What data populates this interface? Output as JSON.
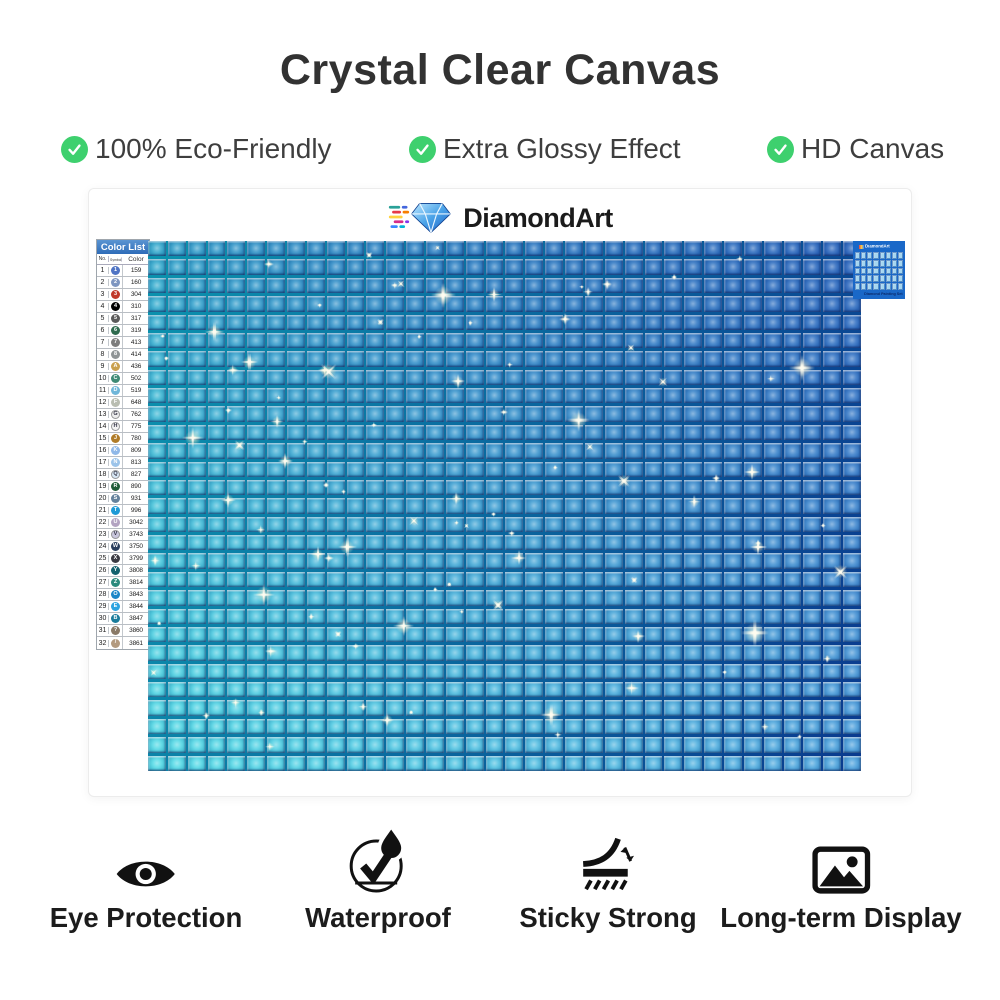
{
  "header": {
    "title": "Crystal Clear Canvas"
  },
  "features": [
    {
      "label": "100% Eco-Friendly"
    },
    {
      "label": "Extra Glossy Effect"
    },
    {
      "label": "HD Canvas"
    }
  ],
  "brand": {
    "name": "DiamondArt"
  },
  "colors": {
    "check_green": "#3ed06e",
    "title_text": "#323232",
    "color_list_header_blue": "#3a7cc0",
    "thumbnail_bg": "#1a68c8"
  },
  "color_list": {
    "title": "Color List",
    "columns": [
      "No.",
      "Symbol",
      "Color"
    ],
    "rows": [
      {
        "no": "1",
        "symbol": "1",
        "code": "159",
        "bg": "#4f74c4"
      },
      {
        "no": "2",
        "symbol": "2",
        "code": "160",
        "bg": "#7e96c0"
      },
      {
        "no": "3",
        "symbol": "3",
        "code": "304",
        "bg": "#c0392b"
      },
      {
        "no": "4",
        "symbol": "4",
        "code": "310",
        "bg": "#000000"
      },
      {
        "no": "5",
        "symbol": "5",
        "code": "317",
        "bg": "#5a5a5a"
      },
      {
        "no": "6",
        "symbol": "6",
        "code": "319",
        "bg": "#2f6b4f"
      },
      {
        "no": "7",
        "symbol": "7",
        "code": "413",
        "bg": "#7d7d7d"
      },
      {
        "no": "8",
        "symbol": "8",
        "code": "414",
        "bg": "#8f9496"
      },
      {
        "no": "9",
        "symbol": "A",
        "code": "436",
        "bg": "#c9a04e"
      },
      {
        "no": "10",
        "symbol": "C",
        "code": "502",
        "bg": "#3e8a74"
      },
      {
        "no": "11",
        "symbol": "D",
        "code": "519",
        "bg": "#6fb6d9"
      },
      {
        "no": "12",
        "symbol": "F",
        "code": "648",
        "bg": "#b9bdb1"
      },
      {
        "no": "13",
        "symbol": "G",
        "code": "762",
        "bg": "#ededed",
        "light": true
      },
      {
        "no": "14",
        "symbol": "H",
        "code": "775",
        "bg": "#f3f3f3",
        "light": true
      },
      {
        "no": "15",
        "symbol": "J",
        "code": "780",
        "bg": "#b07c28"
      },
      {
        "no": "16",
        "symbol": "K",
        "code": "809",
        "bg": "#8fb8e8"
      },
      {
        "no": "17",
        "symbol": "N",
        "code": "813",
        "bg": "#9cc4ea"
      },
      {
        "no": "18",
        "symbol": "Q",
        "code": "827",
        "bg": "#d6e6f4",
        "light": true
      },
      {
        "no": "19",
        "symbol": "R",
        "code": "890",
        "bg": "#1f5c38"
      },
      {
        "no": "20",
        "symbol": "S",
        "code": "931",
        "bg": "#64829c"
      },
      {
        "no": "21",
        "symbol": "T",
        "code": "996",
        "bg": "#1f9ad6"
      },
      {
        "no": "22",
        "symbol": "U",
        "code": "3042",
        "bg": "#b3a3c2"
      },
      {
        "no": "23",
        "symbol": "V",
        "code": "3743",
        "bg": "#c9c6dd",
        "light": true
      },
      {
        "no": "24",
        "symbol": "W",
        "code": "3750",
        "bg": "#2a3f5e"
      },
      {
        "no": "25",
        "symbol": "X",
        "code": "3799",
        "bg": "#3a3a42"
      },
      {
        "no": "26",
        "symbol": "Y",
        "code": "3808",
        "bg": "#14616e"
      },
      {
        "no": "27",
        "symbol": "Z",
        "code": "3814",
        "bg": "#2b8a7d"
      },
      {
        "no": "28",
        "symbol": "O",
        "code": "3843",
        "bg": "#1b86c8"
      },
      {
        "no": "29",
        "symbol": "E",
        "code": "3844",
        "bg": "#2ba3e0"
      },
      {
        "no": "30",
        "symbol": "B",
        "code": "3847",
        "bg": "#1b7c9b"
      },
      {
        "no": "31",
        "symbol": "?",
        "code": "3860",
        "bg": "#8a7a68"
      },
      {
        "no": "32",
        "symbol": "/",
        "code": "3861",
        "bg": "#b39a7f"
      }
    ]
  },
  "canvas": {
    "cols": 36,
    "rows": 29,
    "corner_colors": {
      "top_left": "#35a8cc",
      "top_right": "#2c66bd",
      "bottom_left": "#55dbe6",
      "bottom_right": "#4fa3dd"
    },
    "separator_gradient": [
      "#0b93ae",
      "#0a3a8e"
    ],
    "sparkle_count": 95
  },
  "thumbnail": {
    "brand": "DiamondArt",
    "caption": "Diamond Painting Set",
    "grid": {
      "cols": 8,
      "rows": 5
    }
  },
  "bottom_features": [
    {
      "icon": "eye-icon",
      "label": "Eye Protection"
    },
    {
      "icon": "waterproof-icon",
      "label": "Waterproof"
    },
    {
      "icon": "sticky-strong-icon",
      "label": "Sticky Strong"
    },
    {
      "icon": "long-term-display-icon",
      "label": "Long-term Display"
    }
  ]
}
